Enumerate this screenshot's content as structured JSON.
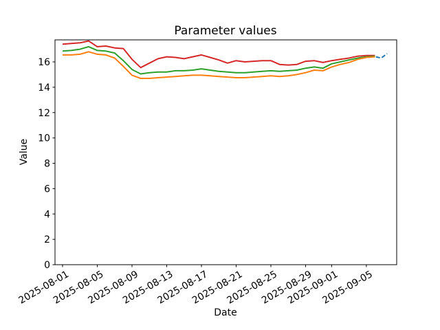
{
  "chart_data": {
    "type": "line",
    "title": "Parameter values",
    "xlabel": "Date",
    "ylabel": "Value",
    "ylim": [
      0,
      17.75
    ],
    "grid": false,
    "legend": "none",
    "y_ticks": [
      0,
      2,
      4,
      6,
      8,
      10,
      12,
      14,
      16
    ],
    "x_tick_labels": [
      "2025-08-01",
      "2025-08-05",
      "2025-08-09",
      "2025-08-13",
      "2025-08-17",
      "2025-08-21",
      "2025-08-25",
      "2025-08-29",
      "2025-09-01",
      "2025-09-05"
    ],
    "categories": [
      "2025-08-01",
      "2025-08-02",
      "2025-08-03",
      "2025-08-04",
      "2025-08-05",
      "2025-08-06",
      "2025-08-07",
      "2025-08-08",
      "2025-08-09",
      "2025-08-10",
      "2025-08-11",
      "2025-08-12",
      "2025-08-13",
      "2025-08-14",
      "2025-08-15",
      "2025-08-16",
      "2025-08-17",
      "2025-08-18",
      "2025-08-19",
      "2025-08-20",
      "2025-08-21",
      "2025-08-22",
      "2025-08-23",
      "2025-08-24",
      "2025-08-25",
      "2025-08-26",
      "2025-08-27",
      "2025-08-28",
      "2025-08-29",
      "2025-08-30",
      "2025-08-31",
      "2025-09-01",
      "2025-09-02",
      "2025-09-03",
      "2025-09-04",
      "2025-09-05",
      "2025-09-06"
    ],
    "series": [
      {
        "name": "series-red",
        "color": "#d62728",
        "dashed": false,
        "values": [
          17.4,
          17.45,
          17.5,
          17.65,
          17.2,
          17.25,
          17.1,
          17.05,
          16.2,
          15.55,
          15.9,
          16.25,
          16.4,
          16.35,
          16.25,
          16.4,
          16.55,
          16.35,
          16.15,
          15.9,
          16.1,
          16.0,
          16.05,
          16.1,
          16.1,
          15.8,
          15.75,
          15.8,
          16.05,
          16.1,
          15.95,
          16.1,
          16.2,
          16.3,
          16.45,
          16.5,
          16.5
        ]
      },
      {
        "name": "series-green",
        "color": "#2ca02c",
        "dashed": false,
        "values": [
          16.85,
          16.9,
          17.0,
          17.2,
          16.9,
          16.85,
          16.7,
          16.1,
          15.4,
          15.05,
          15.15,
          15.2,
          15.2,
          15.3,
          15.3,
          15.35,
          15.45,
          15.35,
          15.25,
          15.2,
          15.15,
          15.15,
          15.2,
          15.25,
          15.3,
          15.25,
          15.3,
          15.35,
          15.5,
          15.6,
          15.5,
          15.85,
          16.0,
          16.15,
          16.3,
          16.4,
          16.45
        ]
      },
      {
        "name": "series-orange",
        "color": "#ff7f0e",
        "dashed": false,
        "values": [
          16.55,
          16.55,
          16.6,
          16.8,
          16.6,
          16.55,
          16.3,
          15.65,
          14.95,
          14.7,
          14.7,
          14.75,
          14.8,
          14.85,
          14.9,
          14.95,
          14.95,
          14.9,
          14.85,
          14.8,
          14.75,
          14.75,
          14.8,
          14.85,
          14.9,
          14.85,
          14.9,
          15.0,
          15.15,
          15.35,
          15.3,
          15.6,
          15.8,
          15.95,
          16.2,
          16.35,
          16.4
        ]
      },
      {
        "name": "series-blue-tail",
        "color": "#1f77b4",
        "dashed": true,
        "x_days": [
          36.1,
          36.7,
          37.4
        ],
        "values": [
          16.4,
          16.3,
          16.65
        ]
      }
    ]
  }
}
